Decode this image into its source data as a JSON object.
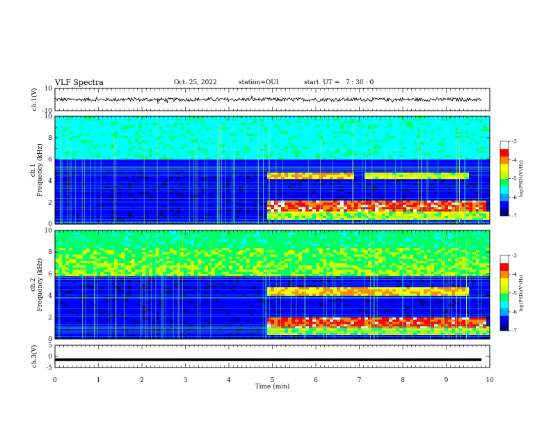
{
  "header": {
    "title": "VLF Spectra",
    "date": "Oct. 25, 2022",
    "station": "station=OUI",
    "start": "start  UT =   7 : 30 : 0"
  },
  "chart_data": [
    {
      "type": "line",
      "panel": "ch1-waveform",
      "ylabel": "ch.1(V)",
      "ylim": [
        -10,
        10
      ],
      "yticks": [
        "10",
        "-10"
      ],
      "xlim": [
        0,
        10
      ],
      "series": [
        {
          "values_note": "",
          "baseline": 0,
          "amplitude": 2
        }
      ]
    },
    {
      "type": "heatmap",
      "panel": "ch1-spectrogram",
      "ylabel": "ch.1\nFrequency (kHz)",
      "ylabel_line1": "ch.1",
      "ylabel_line2": "Frequency (kHz)",
      "ylim": [
        0,
        10
      ],
      "yticks": [
        "0",
        "2",
        "4",
        "6",
        "8",
        "10"
      ],
      "xlim": [
        0,
        10
      ],
      "colorbar": {
        "label": "log(PSD)(V²/Hz)",
        "range": [
          -7,
          -3
        ],
        "ticks": [
          "-3",
          "-4",
          "-5",
          "-6",
          "-7"
        ]
      },
      "features": [
        {
          "name": "emission-band",
          "t_start": 4.9,
          "t_end": 9.9,
          "f_low": 1.3,
          "f_high": 2.1,
          "level": -3.5
        },
        {
          "name": "emission-band",
          "t_start": 4.9,
          "t_end": 6.9,
          "f_low": 4.2,
          "f_high": 4.7,
          "level": -4.0
        },
        {
          "name": "emission-band",
          "t_start": 7.1,
          "t_end": 9.5,
          "f_low": 4.2,
          "f_high": 4.7,
          "level": -4.5
        }
      ]
    },
    {
      "type": "heatmap",
      "panel": "ch2-spectrogram",
      "ylabel_line1": "ch.2",
      "ylabel_line2": "Frequency (kHz)",
      "ylim": [
        0,
        10
      ],
      "yticks": [
        "0",
        "2",
        "4",
        "6",
        "8",
        "10"
      ],
      "xlim": [
        0,
        10
      ],
      "colorbar": {
        "label": "log(PSD)(V²/Hz)",
        "range": [
          -7,
          -3
        ],
        "ticks": [
          "-3",
          "-4",
          "-5",
          "-6",
          "-7"
        ]
      },
      "features": [
        {
          "name": "emission-band",
          "t_start": 4.9,
          "t_end": 9.9,
          "f_low": 1.0,
          "f_high": 2.0,
          "level": -3.5
        },
        {
          "name": "emission-band",
          "t_start": 4.9,
          "t_end": 9.5,
          "f_low": 4.1,
          "f_high": 4.7,
          "level": -4.0
        },
        {
          "name": "emission-band",
          "t_start": 0.0,
          "t_end": 10.0,
          "f_low": 5.8,
          "f_high": 7.0,
          "level": -5.0
        }
      ]
    },
    {
      "type": "line",
      "panel": "ch3-waveform",
      "ylabel": "ch.3(V)",
      "ylim": [
        -5,
        5
      ],
      "yticks": [
        "5",
        "0",
        "-5"
      ],
      "xlim": [
        0,
        10
      ],
      "series": [
        {
          "constant": -1.5
        }
      ]
    }
  ],
  "xaxis": {
    "label": "Time  (min)",
    "ticks": [
      "0",
      "1",
      "2",
      "3",
      "4",
      "5",
      "6",
      "7",
      "8",
      "9",
      "10"
    ]
  },
  "colors": {
    "colormap": [
      "#000080",
      "#0000ff",
      "#00aaff",
      "#00ffff",
      "#00ff66",
      "#ccff00",
      "#ffff00",
      "#ff8800",
      "#ff0000",
      "#ffffff"
    ]
  }
}
